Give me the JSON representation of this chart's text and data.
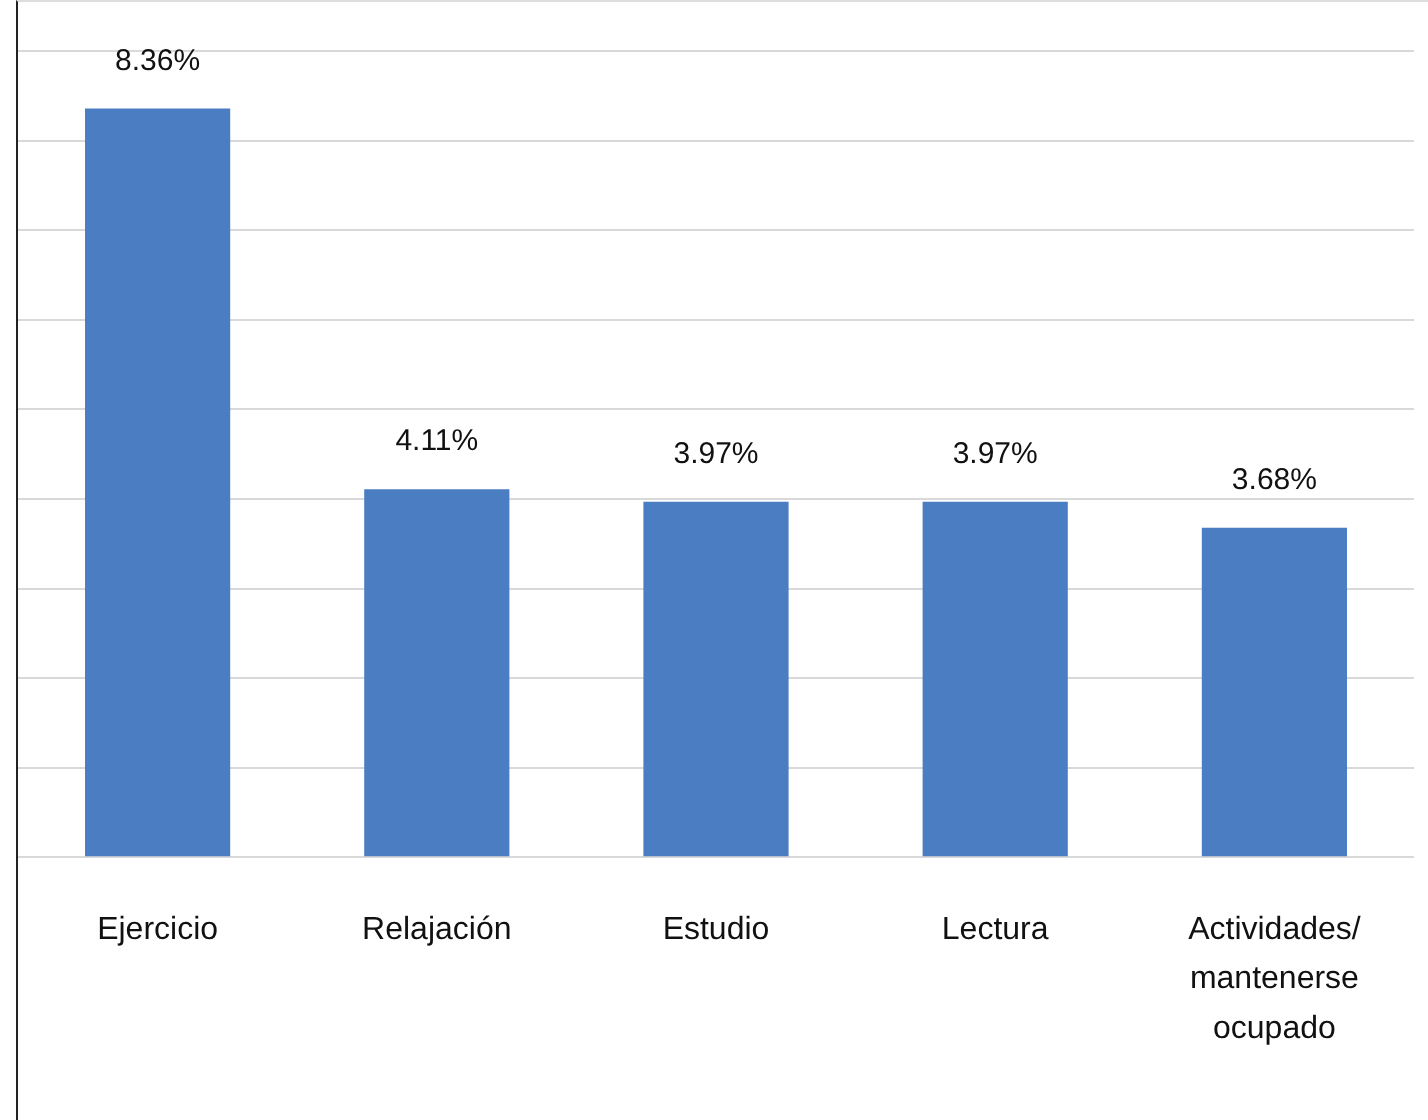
{
  "chart_data": {
    "type": "bar",
    "categories": [
      "Ejercicio",
      "Relajación",
      "Estudio",
      "Lectura",
      "Actividades/ mantenerse ocupado"
    ],
    "values": [
      8.36,
      4.11,
      3.97,
      3.97,
      3.68
    ],
    "value_labels": [
      "8.36%",
      "4.11%",
      "3.97%",
      "3.97%",
      "3.68%"
    ],
    "color": "#4a7dc2",
    "ylim": [
      0,
      9.55
    ],
    "yticks": [
      {
        "value": 0,
        "label": null
      },
      {
        "value": 1,
        "label": null
      },
      {
        "value": 2,
        "label": null
      },
      {
        "value": 3,
        "label": null
      },
      {
        "value": 4,
        "label": null
      },
      {
        "value": 5,
        "label": null
      },
      {
        "value": 6,
        "label": null
      },
      {
        "value": 7,
        "label": null
      },
      {
        "value": 8,
        "label": null
      },
      {
        "value": 9,
        "label": null
      }
    ],
    "grid": "y",
    "legend": false
  }
}
